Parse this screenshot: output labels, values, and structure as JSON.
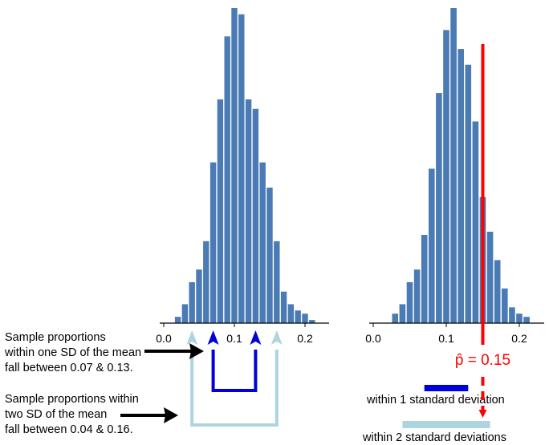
{
  "chart_data": [
    {
      "type": "bar",
      "panel": "left",
      "x_ticks": [
        0.0,
        0.1,
        0.2
      ],
      "x_tick_labels": [
        "0.0",
        "0.1",
        "0.2"
      ],
      "x": [
        0.02,
        0.03,
        0.04,
        0.05,
        0.06,
        0.07,
        0.08,
        0.09,
        0.1,
        0.11,
        0.12,
        0.13,
        0.14,
        0.15,
        0.16,
        0.17,
        0.18,
        0.19,
        0.2,
        0.21
      ],
      "values": [
        0.02,
        0.06,
        0.13,
        0.17,
        0.26,
        0.51,
        0.71,
        0.91,
        1.0,
        0.98,
        0.71,
        0.68,
        0.51,
        0.43,
        0.26,
        0.1,
        0.06,
        0.04,
        0.03,
        0.01
      ],
      "bar_color": "#4a7bb4",
      "annotations": {
        "one_sd": {
          "range": [
            0.07,
            0.13
          ],
          "color": "#0000dd",
          "text": [
            "Sample proportions",
            "within one SD of the mean",
            "fall between 0.07 & 0.13."
          ]
        },
        "two_sd": {
          "range": [
            0.04,
            0.16
          ],
          "color": "#aed4e0",
          "text": [
            "Sample proportions within",
            "two SD of the mean",
            "fall between 0.04 & 0.16."
          ]
        }
      }
    },
    {
      "type": "bar",
      "panel": "right",
      "x_ticks": [
        0.0,
        0.1,
        0.2
      ],
      "x_tick_labels": [
        "0.0",
        "0.1",
        "0.2"
      ],
      "x": [
        0.03,
        0.04,
        0.05,
        0.06,
        0.07,
        0.08,
        0.09,
        0.1,
        0.11,
        0.12,
        0.13,
        0.14,
        0.15,
        0.16,
        0.17,
        0.18,
        0.19,
        0.2,
        0.21
      ],
      "values": [
        0.03,
        0.06,
        0.13,
        0.17,
        0.28,
        0.49,
        0.73,
        0.93,
        1.0,
        0.87,
        0.82,
        0.64,
        0.4,
        0.29,
        0.2,
        0.11,
        0.05,
        0.03,
        0.02
      ],
      "bar_color": "#4a7bb4",
      "p_hat": {
        "value": 0.15,
        "label": "p̂ = 0.15",
        "color": "#ff0000"
      },
      "legend": [
        {
          "label": "within 1 standard deviation",
          "range": [
            0.07,
            0.13
          ],
          "color": "#0000dd"
        },
        {
          "label": "within 2 standard deviations",
          "range": [
            0.04,
            0.16
          ],
          "color": "#aed4e0"
        }
      ]
    }
  ]
}
